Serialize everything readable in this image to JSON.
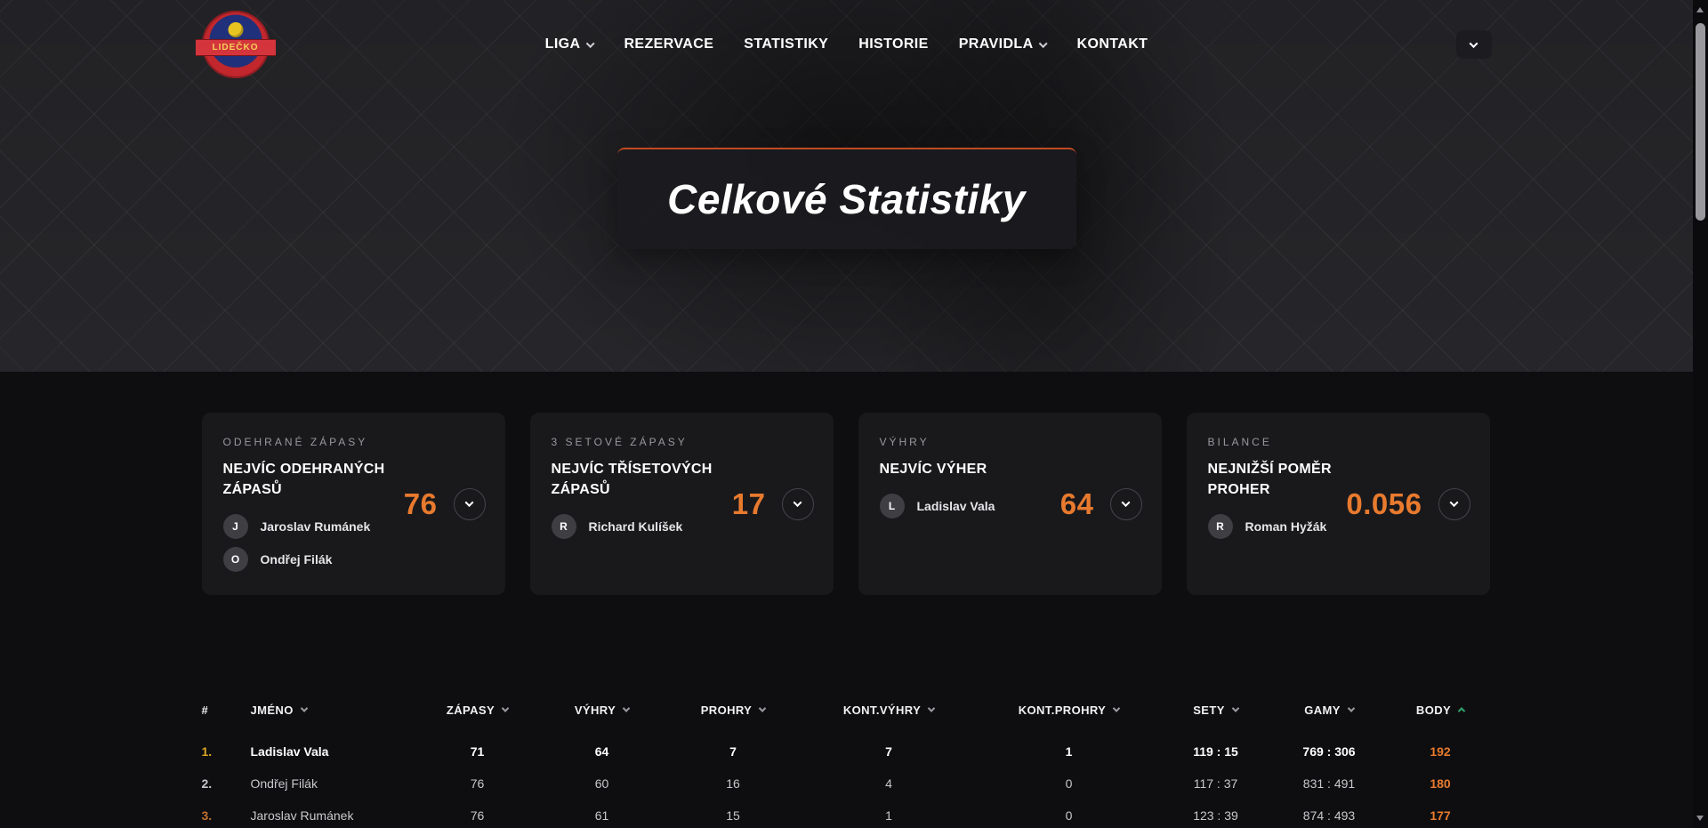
{
  "header": {
    "logo_text": "LIDEČKO",
    "nav": [
      {
        "label": "LIGA",
        "has_dropdown": true
      },
      {
        "label": "REZERVACE",
        "has_dropdown": false
      },
      {
        "label": "STATISTIKY",
        "has_dropdown": false
      },
      {
        "label": "HISTORIE",
        "has_dropdown": false
      },
      {
        "label": "PRAVIDLA",
        "has_dropdown": true
      },
      {
        "label": "KONTAKT",
        "has_dropdown": false
      }
    ]
  },
  "hero": {
    "title": "Celkové Statistiky"
  },
  "stat_cards": [
    {
      "eyebrow": "ODEHRANÉ ZÁPASY",
      "title": "NEJVÍC ODEHRANÝCH ZÁPASŮ",
      "value": "76",
      "players": [
        {
          "initial": "J",
          "name": "Jaroslav Rumánek"
        },
        {
          "initial": "O",
          "name": "Ondřej Filák"
        }
      ]
    },
    {
      "eyebrow": "3 SETOVÉ ZÁPASY",
      "title": "NEJVÍC TŘÍSETOVÝCH ZÁPASŮ",
      "value": "17",
      "players": [
        {
          "initial": "R",
          "name": "Richard Kulíšek"
        }
      ]
    },
    {
      "eyebrow": "VÝHRY",
      "title": "NEJVÍC VÝHER",
      "value": "64",
      "players": [
        {
          "initial": "L",
          "name": "Ladislav Vala"
        }
      ]
    },
    {
      "eyebrow": "BILANCE",
      "title": "NEJNIŽŠÍ POMĚR PROHER",
      "value": "0.056",
      "players": [
        {
          "initial": "R",
          "name": "Roman Hyžák"
        }
      ]
    }
  ],
  "table": {
    "columns": [
      {
        "label": "#",
        "sortable": false
      },
      {
        "label": "JMÉNO",
        "sortable": true,
        "sort": "none"
      },
      {
        "label": "ZÁPASY",
        "sortable": true,
        "sort": "none"
      },
      {
        "label": "VÝHRY",
        "sortable": true,
        "sort": "none"
      },
      {
        "label": "PROHRY",
        "sortable": true,
        "sort": "none"
      },
      {
        "label": "KONT.VÝHRY",
        "sortable": true,
        "sort": "none"
      },
      {
        "label": "KONT.PROHRY",
        "sortable": true,
        "sort": "none"
      },
      {
        "label": "SETY",
        "sortable": true,
        "sort": "none"
      },
      {
        "label": "GAMY",
        "sortable": true,
        "sort": "none"
      },
      {
        "label": "BODY",
        "sortable": true,
        "sort": "asc"
      }
    ],
    "rows": [
      {
        "cells": [
          "1.",
          "Ladislav Vala",
          "71",
          "64",
          "7",
          "7",
          "1",
          "119 : 15",
          "769 : 306",
          "192"
        ]
      },
      {
        "cells": [
          "2.",
          "Ondřej Filák",
          "76",
          "60",
          "16",
          "4",
          "0",
          "117 : 37",
          "831 : 491",
          "180"
        ]
      },
      {
        "cells": [
          "3.",
          "Jaroslav Rumánek",
          "76",
          "61",
          "15",
          "1",
          "0",
          "123 : 39",
          "874 : 493",
          "177"
        ]
      }
    ]
  },
  "colors": {
    "accent_orange": "#e87a2e",
    "rank_gold": "#d9a426",
    "rank_silver": "#c6c6ca",
    "rank_bronze": "#bf7030",
    "sort_active_green": "#2fa36b",
    "hero_border": "#c14a22",
    "card_bg": "#19191c",
    "page_bg": "#0e0e10"
  }
}
